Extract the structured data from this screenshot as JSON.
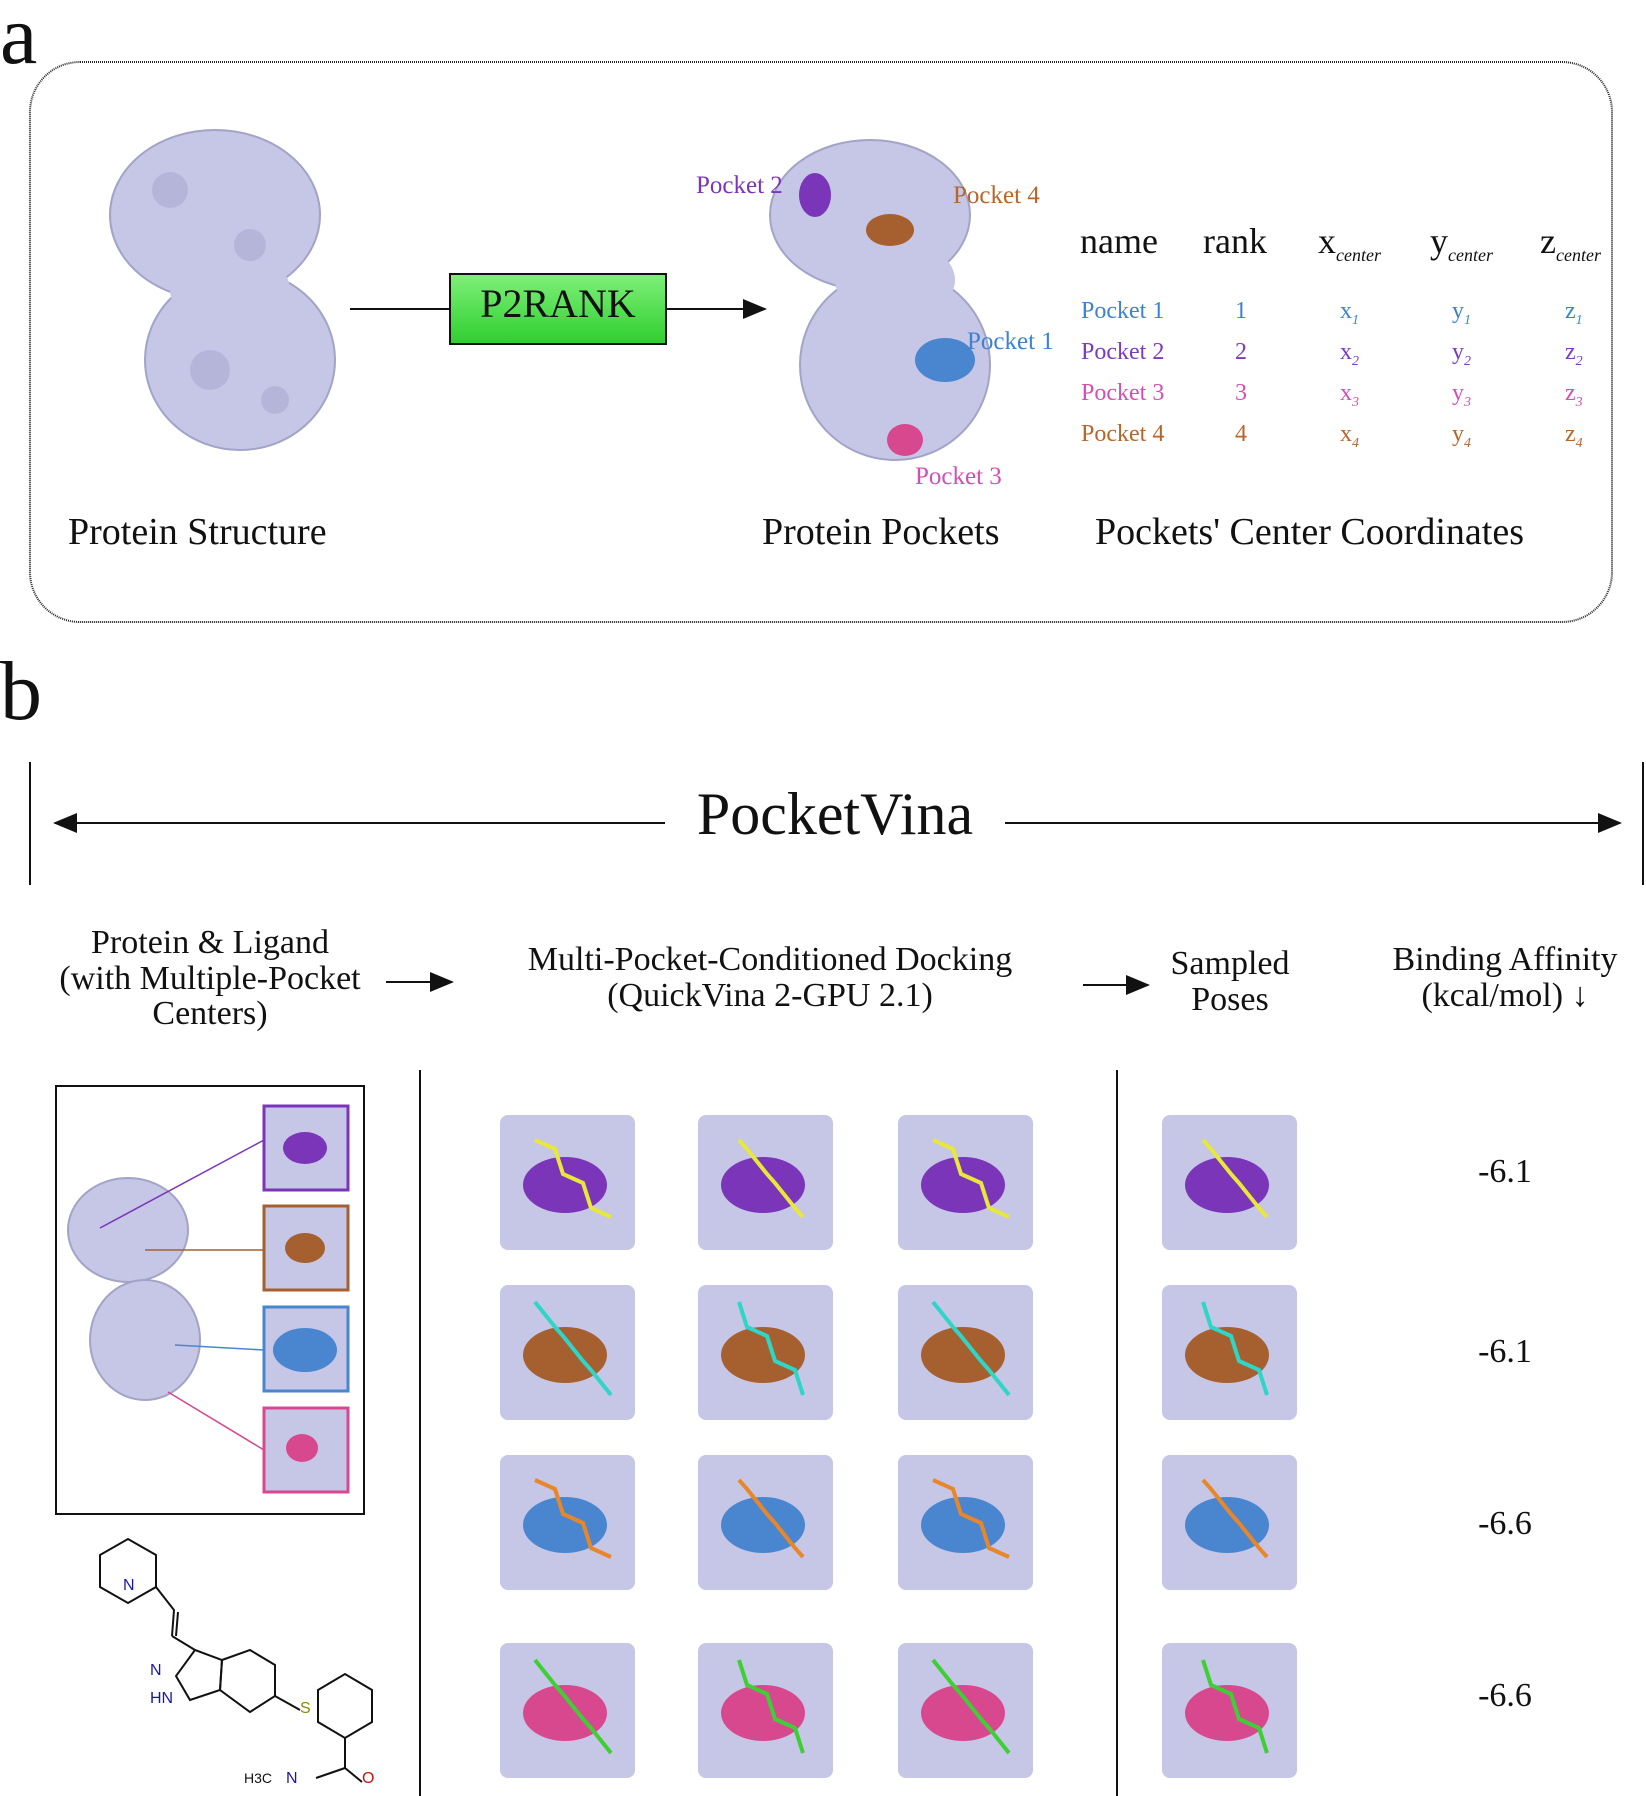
{
  "panel_a": {
    "letter": "a",
    "method_box": "P2RANK",
    "captions": {
      "structure": "Protein Structure",
      "pockets": "Protein Pockets",
      "coords": "Pockets' Center Coordinates"
    },
    "pocket_labels": {
      "p1": "Pocket 1",
      "p2": "Pocket 2",
      "p3": "Pocket 3",
      "p4": "Pocket 4"
    },
    "table": {
      "headers": {
        "name": "name",
        "rank": "rank",
        "x": "x",
        "y": "y",
        "z": "z",
        "sub": "center"
      },
      "rows": [
        {
          "name": "Pocket 1",
          "rank": "1",
          "x": "x",
          "y": "y",
          "z": "z",
          "idx": "1",
          "color": "#3d82d0"
        },
        {
          "name": "Pocket 2",
          "rank": "2",
          "x": "x",
          "y": "y",
          "z": "z",
          "idx": "2",
          "color": "#7b3bbf"
        },
        {
          "name": "Pocket 3",
          "rank": "3",
          "x": "x",
          "y": "y",
          "z": "z",
          "idx": "3",
          "color": "#d44fb4"
        },
        {
          "name": "Pocket 4",
          "rank": "4",
          "x": "x",
          "y": "y",
          "z": "z",
          "idx": "4",
          "color": "#b8652a"
        }
      ]
    }
  },
  "panel_b": {
    "letter": "b",
    "title": "PocketVina",
    "headers": {
      "input": [
        "Protein & Ligand",
        "(with Multiple-Pocket",
        "Centers)"
      ],
      "docking": [
        "Multi-Pocket-Conditioned Docking",
        "(QuickVina 2-GPU 2.1)"
      ],
      "poses": [
        "Sampled",
        "Poses"
      ],
      "affinity": [
        "Binding Affinity",
        "(kcal/mol) ↓"
      ]
    },
    "affinities": [
      "-6.1",
      "-6.1",
      "-6.6",
      "-6.6"
    ],
    "ligand_atoms": {
      "n1": "N",
      "n2": "N",
      "nh": "HN",
      "s": "S",
      "o": "O",
      "n3": "N",
      "h": "H",
      "ch3": "H3C"
    }
  },
  "colors": {
    "surface": "#c6c6e6",
    "pocket1": "#4a86cf",
    "pocket2": "#7a35b8",
    "pocket3": "#d8488f",
    "pocket4": "#a6602f",
    "ligand_yellow": "#e8e83a",
    "ligand_cyan": "#2ed6c8",
    "ligand_orange": "#e8872a",
    "ligand_green": "#3ecf35",
    "p2rank_green": "#4ee04e"
  }
}
